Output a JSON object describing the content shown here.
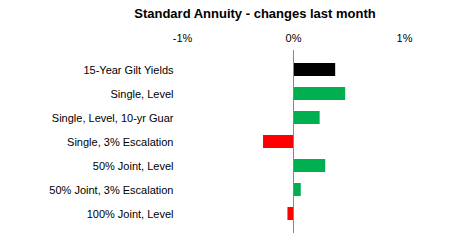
{
  "chart_data": {
    "type": "bar",
    "orientation": "horizontal",
    "title": "Standard Annuity - changes last month",
    "categories": [
      "15-Year Gilt Yields",
      "Single, Level",
      "Single, Level, 10-yr Guar",
      "Single, 3% Escalation",
      "50% Joint, Level",
      "50% Joint, 3% Escalation",
      "100% Joint, Level"
    ],
    "values": [
      0.38,
      0.47,
      0.24,
      -0.27,
      0.29,
      0.07,
      -0.05
    ],
    "colors": [
      "#000000",
      "#00b050",
      "#00b050",
      "#ff0000",
      "#00b050",
      "#00b050",
      "#ff0000"
    ],
    "xlim": [
      -1,
      1
    ],
    "xticks": [
      {
        "value": -1,
        "label": "-1%"
      },
      {
        "value": 0,
        "label": "0%"
      },
      {
        "value": 1,
        "label": "1%"
      }
    ],
    "grid": false,
    "data_labels": false
  }
}
